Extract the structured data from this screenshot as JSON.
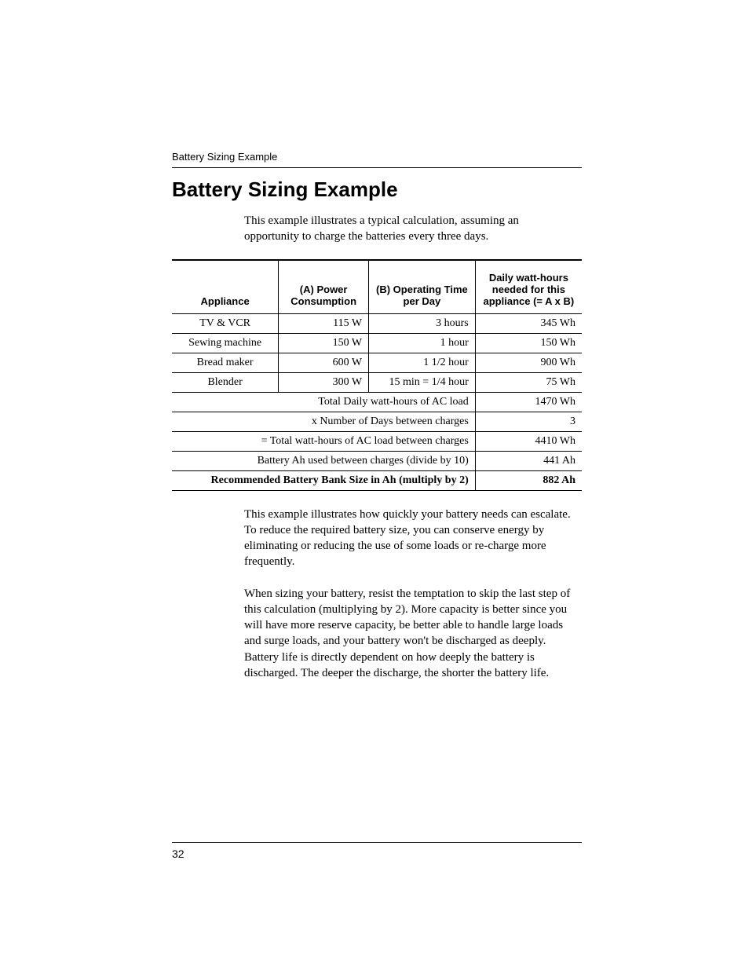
{
  "runningHeader": "Battery Sizing Example",
  "heading": "Battery Sizing Example",
  "intro": "This example illustrates a typical calculation, assuming an opportunity to charge the batteries every three days.",
  "table": {
    "headers": {
      "appliance": "Appliance",
      "power": "(A) Power Consumption",
      "time": "(B) Operating Time per Day",
      "wh": "Daily watt-hours needed for this appliance (= A x B)"
    },
    "rows": [
      {
        "appliance": "TV & VCR",
        "power": "115 W",
        "time": "3 hours",
        "wh": "345 Wh"
      },
      {
        "appliance": "Sewing machine",
        "power": "150 W",
        "time": "1 hour",
        "wh": "150 Wh"
      },
      {
        "appliance": "Bread maker",
        "power": "600 W",
        "time": "1 1/2 hour",
        "wh": "900 Wh"
      },
      {
        "appliance": "Blender",
        "power": "300 W",
        "time": "15 min = 1/4 hour",
        "wh": "75 Wh"
      }
    ],
    "summary": [
      {
        "label": "Total Daily watt-hours of AC load",
        "value": "1470 Wh",
        "bold": false
      },
      {
        "label": "x Number of Days between charges",
        "value": "3",
        "bold": false
      },
      {
        "label": "= Total watt-hours of AC load between charges",
        "value": "4410 Wh",
        "bold": false
      },
      {
        "label": "Battery Ah used between charges (divide by 10)",
        "value": "441 Ah",
        "bold": false
      },
      {
        "label": "Recommended Battery Bank Size in Ah (multiply by 2)",
        "value": "882 Ah",
        "bold": true
      }
    ]
  },
  "para1": "This example illustrates how quickly your battery needs can escalate. To reduce the required battery size, you can conserve energy by eliminating or reducing the use of some loads or re-charge more frequently.",
  "para2": "When sizing your battery, resist the temptation to skip the last step of this calculation (multiplying by 2). More capacity is better since you will have more reserve capacity, be better able to handle large loads and surge loads, and your battery won't be discharged as deeply. Battery life is directly dependent on how deeply the battery is discharged. The deeper the discharge, the shorter the battery life.",
  "pageNumber": "32"
}
